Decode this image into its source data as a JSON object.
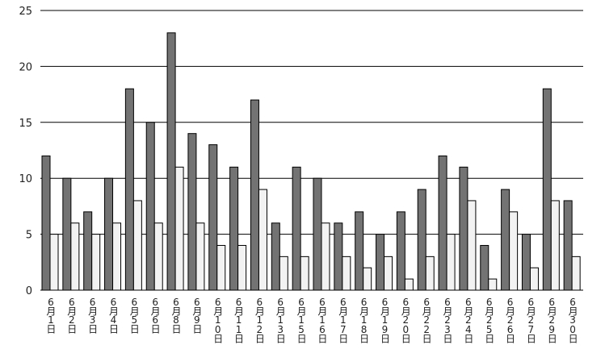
{
  "chart_data": {
    "type": "bar",
    "categories": [
      "6月1日",
      "6月2日",
      "6月3日",
      "6月4日",
      "6月5日",
      "6月6日",
      "6月8日",
      "6月9日",
      "6月10日",
      "6月11日",
      "6月12日",
      "6月13日",
      "6月15日",
      "6月16日",
      "6月17日",
      "6月18日",
      "6月19日",
      "6月20日",
      "6月22日",
      "6月23日",
      "6月24日",
      "6月25日",
      "6月26日",
      "6月27日",
      "6月29日",
      "6月30日"
    ],
    "series": [
      {
        "color": "#737373",
        "values": [
          12,
          10,
          7,
          10,
          18,
          15,
          23,
          14,
          13,
          11,
          17,
          6,
          11,
          10,
          6,
          7,
          5,
          7,
          9,
          12,
          11,
          4,
          9,
          5,
          18,
          8
        ]
      },
      {
        "color": "#f2f2f2",
        "values": [
          5,
          6,
          5,
          6,
          8,
          6,
          11,
          6,
          4,
          4,
          9,
          3,
          3,
          6,
          3,
          2,
          3,
          1,
          3,
          5,
          8,
          1,
          7,
          2,
          8,
          3
        ]
      }
    ],
    "ylim": [
      0,
      25
    ],
    "yticks": [
      0,
      5,
      10,
      15,
      20,
      25
    ],
    "grid": true
  }
}
